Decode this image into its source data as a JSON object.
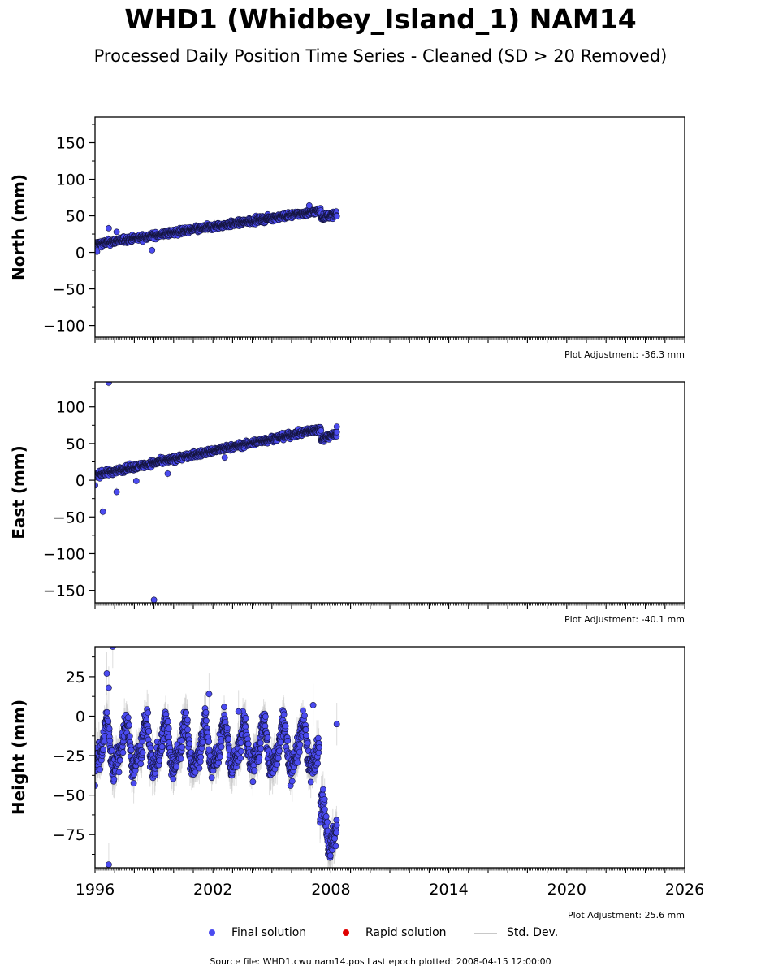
{
  "header": {
    "title": "WHD1 (Whidbey_Island_1) NAM14",
    "subtitle": "Processed Daily Position Time Series - Cleaned (SD > 20 Removed)"
  },
  "colors": {
    "final_solution": "#4b4bf0",
    "rapid_solution": "#e00000",
    "std_dev": "#c8c8c8",
    "marker_edge": "#14143c"
  },
  "legend": {
    "final_label": "Final solution",
    "rapid_label": "Rapid solution",
    "std_label": "Std. Dev."
  },
  "footer": {
    "source": "Source file: WHD1.cwu.nam14.pos  Last epoch plotted: 2008-04-15 12:00:00"
  },
  "chart_data": [
    {
      "type": "scatter",
      "component": "North",
      "ylabel": "North (mm)",
      "adjustment_label": "Plot Adjustment: -36.3 mm",
      "xlim": [
        1996,
        2026
      ],
      "ylim": [
        -116,
        185
      ],
      "yticks": [
        -100,
        -50,
        0,
        50,
        100,
        150
      ],
      "trend": {
        "start": [
          1996.0,
          11
        ],
        "end": [
          2008.3,
          57
        ]
      },
      "segments": [
        {
          "x0": 1996.0,
          "x1": 2007.5,
          "y0": 11,
          "y1": 57
        },
        {
          "x0": 2007.5,
          "x1": 2008.3,
          "y0": 48,
          "y1": 52
        }
      ],
      "outliers": [
        {
          "x": 1996.7,
          "y": 33
        },
        {
          "x": 1996.1,
          "y": 1
        },
        {
          "x": 1998.9,
          "y": 3
        },
        {
          "x": 1997.1,
          "y": 28
        },
        {
          "x": 2006.9,
          "y": 64
        }
      ],
      "noise_mm": 3,
      "std_mm": 4,
      "seasonal_mm": 0
    },
    {
      "type": "scatter",
      "component": "East",
      "ylabel": "East (mm)",
      "adjustment_label": "Plot Adjustment: -40.1 mm",
      "xlim": [
        1996,
        2026
      ],
      "ylim": [
        -167,
        134
      ],
      "yticks": [
        -150,
        -100,
        -50,
        0,
        50,
        100
      ],
      "segments": [
        {
          "x0": 1996.0,
          "x1": 2007.5,
          "y0": 7,
          "y1": 70
        },
        {
          "x0": 2007.5,
          "x1": 2008.3,
          "y0": 56,
          "y1": 64
        }
      ],
      "outliers": [
        {
          "x": 1996.7,
          "y": 133
        },
        {
          "x": 1996.4,
          "y": -43
        },
        {
          "x": 1997.1,
          "y": -16
        },
        {
          "x": 1998.1,
          "y": -1
        },
        {
          "x": 1999.0,
          "y": -163
        },
        {
          "x": 1996.0,
          "y": -7
        },
        {
          "x": 1999.7,
          "y": 9
        },
        {
          "x": 2002.6,
          "y": 31
        },
        {
          "x": 2008.3,
          "y": 73
        }
      ],
      "noise_mm": 3,
      "std_mm": 4,
      "seasonal_mm": 0
    },
    {
      "type": "scatter",
      "component": "Height",
      "ylabel": "Height (mm)",
      "adjustment_label": "Plot Adjustment: 25.6 mm",
      "xlim": [
        1996,
        2026
      ],
      "ylim": [
        -96,
        44
      ],
      "yticks": [
        -75,
        -50,
        -25,
        0,
        25
      ],
      "xticks": [
        1996,
        2002,
        2008,
        2014,
        2020,
        2026
      ],
      "segments": [
        {
          "x0": 1996.0,
          "x1": 2007.4,
          "y0": -20,
          "y1": -20
        },
        {
          "x0": 2007.45,
          "x1": 2008.3,
          "y0": -70,
          "y1": -70
        }
      ],
      "outliers": [
        {
          "x": 1996.9,
          "y": 44
        },
        {
          "x": 1996.6,
          "y": 27
        },
        {
          "x": 1996.7,
          "y": 18
        },
        {
          "x": 2001.8,
          "y": 14
        },
        {
          "x": 2008.3,
          "y": -5
        },
        {
          "x": 1996.0,
          "y": -44
        },
        {
          "x": 1996.7,
          "y": -94
        },
        {
          "x": 2003.3,
          "y": 3
        },
        {
          "x": 2007.1,
          "y": 7
        }
      ],
      "noise_mm": 6,
      "std_mm": 9,
      "seasonal_mm": 13
    }
  ]
}
